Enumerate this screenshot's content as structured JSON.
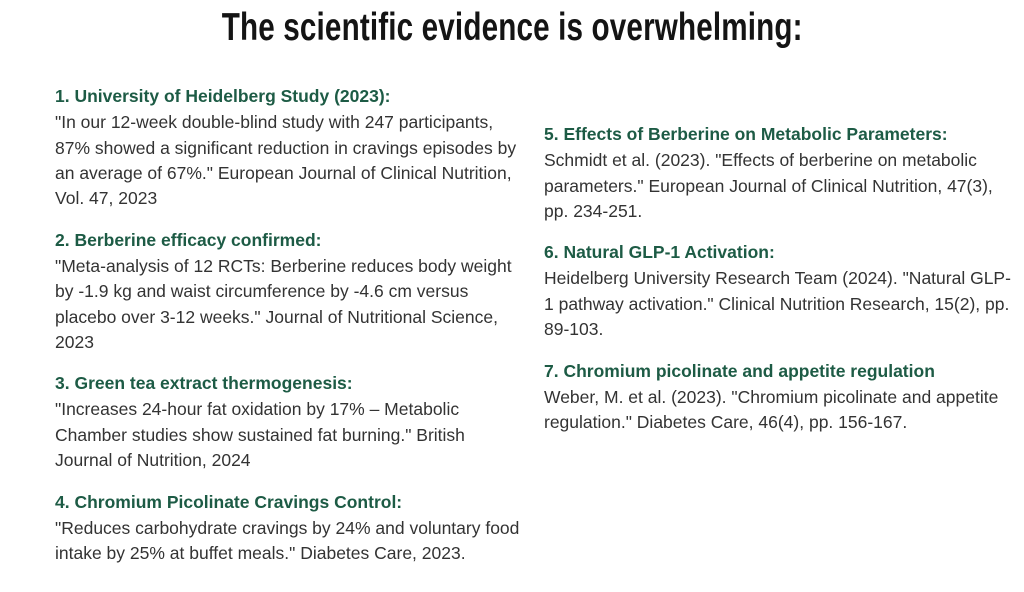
{
  "title": "The scientific evidence is overwhelming:",
  "colors": {
    "heading": "#1d5b45",
    "body": "#333333",
    "title": "#141414",
    "background": "#ffffff"
  },
  "left_column": {
    "items": [
      {
        "heading": "1. University of Heidelberg Study (2023):",
        "body": "\"In our 12-week double-blind study with 247 participants, 87% showed a significant reduction in cravings episodes by an average of 67%.\" European Journal of Clinical Nutrition, Vol. 47, 2023"
      },
      {
        "heading": "2. Berberine efficacy confirmed:",
        "body": "\"Meta-analysis of 12 RCTs: Berberine reduces body weight by -1.9 kg and waist circumference by -4.6 cm versus placebo over 3-12 weeks.\" Journal of Nutritional Science, 2023"
      },
      {
        "heading": "3. Green tea extract thermogenesis:",
        "body": "\"Increases 24-hour fat oxidation by 17% – Metabolic Chamber studies show sustained fat burning.\" British Journal of Nutrition, 2024"
      },
      {
        "heading": "4. Chromium Picolinate Cravings Control:",
        "body": "\"Reduces carbohydrate cravings by 24% and voluntary food intake by 25% at buffet meals.\" Diabetes Care, 2023."
      }
    ]
  },
  "right_column": {
    "items": [
      {
        "heading": "5. Effects of Berberine on Metabolic Parameters:",
        "body": "Schmidt et al. (2023). \"Effects of berberine on metabolic parameters.\" European Journal of Clinical Nutrition, 47(3), pp. 234-251."
      },
      {
        "heading": "6. Natural GLP-1 Activation:",
        "body": "Heidelberg University Research Team (2024). \"Natural GLP-1 pathway activation.\" Clinical Nutrition Research, 15(2), pp. 89-103."
      },
      {
        "heading": "7. Chromium picolinate and appetite regulation",
        "body": "Weber, M. et al. (2023). \"Chromium picolinate and appetite regulation.\" Diabetes Care, 46(4), pp. 156-167."
      }
    ]
  }
}
